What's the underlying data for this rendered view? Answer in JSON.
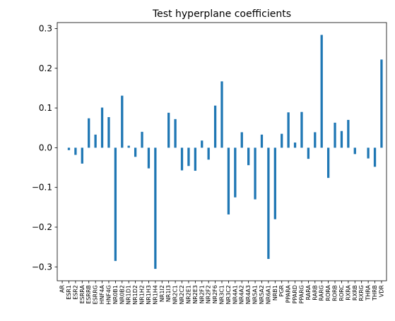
{
  "chart_data": {
    "type": "bar",
    "title": "Test hyperplane coefficients",
    "xlabel": "",
    "ylabel": "",
    "ylim": [
      -0.335,
      0.315
    ],
    "yticks": [
      -0.3,
      -0.2,
      -0.1,
      0.0,
      0.1,
      0.2,
      0.3
    ],
    "ytick_labels": [
      "−0.3",
      "−0.2",
      "−0.1",
      "0.0",
      "0.1",
      "0.2",
      "0.3"
    ],
    "bar_color": "#1f77b4",
    "grid": false,
    "categories": [
      "AR",
      "ESR1",
      "ESR2",
      "ESRRA",
      "ESRRB",
      "ESRRG",
      "HNF4A",
      "HNF4G",
      "NR0B1",
      "NR0B2",
      "NR1D1",
      "NR1D2",
      "NR1H2",
      "NR1H3",
      "NR1H4",
      "NR1I2",
      "NR1I3",
      "NR2C1",
      "NR2C2",
      "NR2E1",
      "NR2E3",
      "NR2F1",
      "NR2F2",
      "NR2F6",
      "NR3C1",
      "NR3C2",
      "NR4A1",
      "NR4A2",
      "NR4A3",
      "NR5A1",
      "NR5A2",
      "NR6A1",
      "NRB1",
      "PGR",
      "PPARA",
      "PPARD",
      "PPARG",
      "RARA",
      "RARB",
      "RARG",
      "RORA",
      "RORB",
      "RORC",
      "RXRA",
      "RXRB",
      "RXRG",
      "THRA",
      "THRB",
      "VDR"
    ],
    "values": [
      0.0,
      -0.006,
      -0.018,
      -0.04,
      0.074,
      0.033,
      0.101,
      0.077,
      -0.285,
      0.131,
      0.005,
      -0.023,
      0.04,
      -0.052,
      -0.305,
      0.0,
      0.088,
      0.072,
      -0.057,
      -0.046,
      -0.058,
      0.018,
      -0.03,
      0.106,
      0.167,
      -0.168,
      -0.125,
      0.039,
      -0.044,
      -0.13,
      0.033,
      -0.28,
      -0.18,
      0.035,
      0.089,
      0.013,
      0.09,
      -0.028,
      0.039,
      0.284,
      -0.076,
      0.063,
      0.042,
      0.07,
      -0.016,
      0.0,
      -0.027,
      -0.048,
      0.222
    ]
  }
}
